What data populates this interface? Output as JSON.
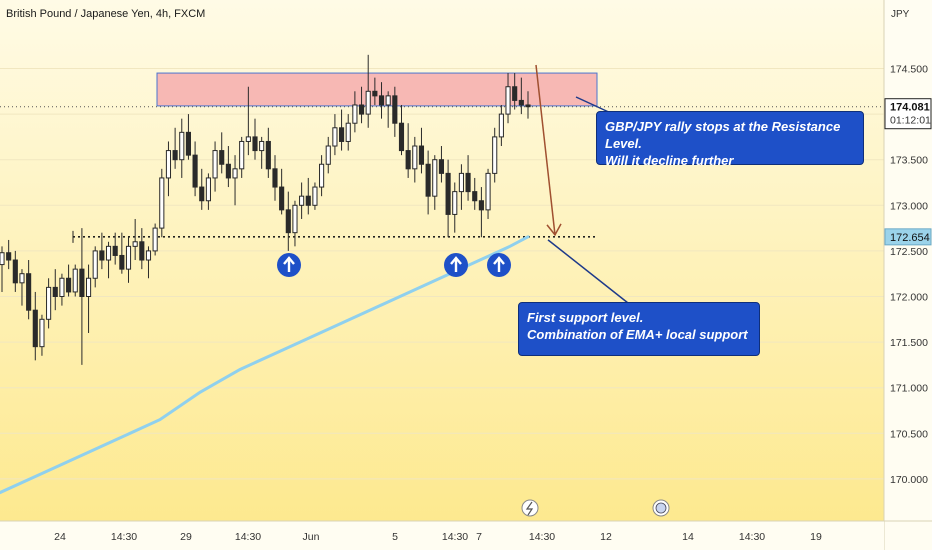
{
  "chart_data": {
    "type": "candlestick",
    "title": "British Pound / Japanese Yen, 4h, FXCM",
    "currency": "JPY",
    "ylim": [
      169.6,
      175.2
    ],
    "y_ticks": [
      "174.500",
      "174.000",
      "173.500",
      "173.000",
      "172.500",
      "172.000",
      "171.500",
      "171.000",
      "170.500",
      "170.000"
    ],
    "y_tick_values": [
      174.5,
      174.0,
      173.5,
      173.0,
      172.5,
      172.0,
      171.5,
      171.0,
      170.5,
      170.0
    ],
    "x_ticks": [
      "24",
      "14:30",
      "29",
      "14:30",
      "Jun",
      "5",
      "14:30",
      "7",
      "14:30",
      "12",
      "14",
      "14:30",
      "19"
    ],
    "last_price": {
      "label": "174.081",
      "value": 174.081,
      "countdown": "01:12:01"
    },
    "support_tag": {
      "label": "172.654",
      "value": 172.654
    },
    "resistance_zone": {
      "low": 174.09,
      "high": 174.45
    },
    "support_level": 172.654,
    "colors": {
      "up": "#1f9c92",
      "down": "#e54b4b",
      "wick": "#2a2a2a",
      "ema": "#8fd0ee",
      "zone": "#f4a3a8",
      "zone_border": "#4a74d0",
      "arrow": "#a05030",
      "callout": "#1e50c8",
      "bg_top": "#fffbe6",
      "bg_bottom": "#fde88a"
    },
    "candles": [
      [
        172.35,
        172.55,
        172.05,
        172.48
      ],
      [
        172.48,
        172.62,
        172.3,
        172.4
      ],
      [
        172.4,
        172.5,
        172.05,
        172.15
      ],
      [
        172.15,
        172.3,
        171.9,
        172.25
      ],
      [
        172.25,
        172.4,
        171.75,
        171.85
      ],
      [
        171.85,
        172.05,
        171.3,
        171.45
      ],
      [
        171.45,
        171.8,
        171.35,
        171.75
      ],
      [
        171.75,
        172.2,
        171.65,
        172.1
      ],
      [
        172.1,
        172.3,
        171.85,
        172.0
      ],
      [
        172.0,
        172.25,
        171.9,
        172.2
      ],
      [
        172.2,
        172.35,
        172.0,
        172.05
      ],
      [
        172.05,
        172.35,
        172.0,
        172.3
      ],
      [
        172.3,
        172.75,
        171.25,
        172.0
      ],
      [
        172.0,
        172.35,
        171.6,
        172.2
      ],
      [
        172.2,
        172.55,
        172.1,
        172.5
      ],
      [
        172.5,
        172.7,
        172.3,
        172.4
      ],
      [
        172.4,
        172.6,
        172.2,
        172.55
      ],
      [
        172.55,
        172.7,
        172.35,
        172.45
      ],
      [
        172.45,
        172.7,
        172.25,
        172.3
      ],
      [
        172.3,
        172.65,
        172.15,
        172.55
      ],
      [
        172.55,
        172.85,
        172.4,
        172.6
      ],
      [
        172.6,
        172.75,
        172.3,
        172.4
      ],
      [
        172.4,
        172.55,
        172.2,
        172.5
      ],
      [
        172.5,
        172.8,
        172.45,
        172.75
      ],
      [
        172.75,
        173.4,
        172.65,
        173.3
      ],
      [
        173.3,
        173.7,
        173.1,
        173.6
      ],
      [
        173.6,
        173.85,
        173.4,
        173.5
      ],
      [
        173.5,
        173.95,
        173.3,
        173.8
      ],
      [
        173.8,
        174.0,
        173.5,
        173.55
      ],
      [
        173.55,
        173.7,
        173.1,
        173.2
      ],
      [
        173.2,
        173.4,
        172.95,
        173.05
      ],
      [
        173.05,
        173.35,
        172.95,
        173.3
      ],
      [
        173.3,
        173.7,
        173.15,
        173.6
      ],
      [
        173.6,
        173.8,
        173.35,
        173.45
      ],
      [
        173.45,
        173.65,
        173.2,
        173.3
      ],
      [
        173.3,
        173.55,
        173.0,
        173.4
      ],
      [
        173.4,
        173.75,
        173.3,
        173.7
      ],
      [
        173.7,
        174.3,
        173.55,
        173.75
      ],
      [
        173.75,
        173.95,
        173.5,
        173.6
      ],
      [
        173.6,
        173.75,
        173.4,
        173.7
      ],
      [
        173.7,
        173.85,
        173.3,
        173.4
      ],
      [
        173.4,
        173.55,
        173.05,
        173.2
      ],
      [
        173.2,
        173.4,
        172.9,
        172.95
      ],
      [
        172.95,
        173.15,
        172.5,
        172.7
      ],
      [
        172.7,
        173.05,
        172.55,
        173.0
      ],
      [
        173.0,
        173.25,
        172.85,
        173.1
      ],
      [
        173.1,
        173.3,
        172.9,
        173.0
      ],
      [
        173.0,
        173.25,
        172.95,
        173.2
      ],
      [
        173.2,
        173.55,
        173.1,
        173.45
      ],
      [
        173.45,
        173.75,
        173.35,
        173.65
      ],
      [
        173.65,
        174.0,
        173.55,
        173.85
      ],
      [
        173.85,
        174.05,
        173.6,
        173.7
      ],
      [
        173.7,
        174.0,
        173.6,
        173.9
      ],
      [
        173.9,
        174.25,
        173.8,
        174.1
      ],
      [
        174.1,
        174.3,
        173.9,
        174.0
      ],
      [
        174.0,
        174.65,
        173.85,
        174.25
      ],
      [
        174.25,
        174.4,
        174.1,
        174.2
      ],
      [
        174.2,
        174.35,
        173.95,
        174.1
      ],
      [
        174.1,
        174.25,
        173.85,
        174.2
      ],
      [
        174.2,
        174.3,
        173.75,
        173.9
      ],
      [
        173.9,
        174.1,
        173.55,
        173.6
      ],
      [
        173.6,
        173.9,
        173.3,
        173.4
      ],
      [
        173.4,
        173.75,
        173.25,
        173.65
      ],
      [
        173.65,
        173.85,
        173.35,
        173.45
      ],
      [
        173.45,
        173.6,
        172.9,
        173.1
      ],
      [
        173.1,
        173.55,
        172.95,
        173.5
      ],
      [
        173.5,
        173.65,
        173.25,
        173.35
      ],
      [
        173.35,
        173.5,
        172.65,
        172.9
      ],
      [
        172.9,
        173.25,
        172.7,
        173.15
      ],
      [
        173.15,
        173.45,
        172.95,
        173.35
      ],
      [
        173.35,
        173.55,
        173.05,
        173.15
      ],
      [
        173.15,
        173.3,
        172.95,
        173.05
      ],
      [
        173.05,
        173.2,
        172.65,
        172.95
      ],
      [
        172.95,
        173.4,
        172.85,
        173.35
      ],
      [
        173.35,
        173.85,
        173.25,
        173.75
      ],
      [
        173.75,
        174.1,
        173.65,
        174.0
      ],
      [
        174.0,
        174.45,
        173.9,
        174.3
      ],
      [
        174.3,
        174.45,
        174.05,
        174.15
      ],
      [
        174.15,
        174.4,
        174.0,
        174.1
      ],
      [
        174.1,
        174.25,
        173.95,
        174.081
      ]
    ],
    "ema": [
      [
        0,
        169.85
      ],
      [
        40,
        170.05
      ],
      [
        80,
        170.25
      ],
      [
        120,
        170.45
      ],
      [
        160,
        170.65
      ],
      [
        200,
        170.95
      ],
      [
        240,
        171.2
      ],
      [
        280,
        171.4
      ],
      [
        320,
        171.6
      ],
      [
        360,
        171.8
      ],
      [
        400,
        172.0
      ],
      [
        440,
        172.2
      ],
      [
        480,
        172.4
      ],
      [
        510,
        172.55
      ],
      [
        528,
        172.654
      ]
    ],
    "annotations": [
      {
        "text": [
          "GBP/JPY rally stops at the Resistance Level.",
          "Will it decline further"
        ]
      },
      {
        "text": [
          "First support level.",
          "Combination of EMA+ local support"
        ]
      }
    ],
    "bounce_markers": 3
  }
}
